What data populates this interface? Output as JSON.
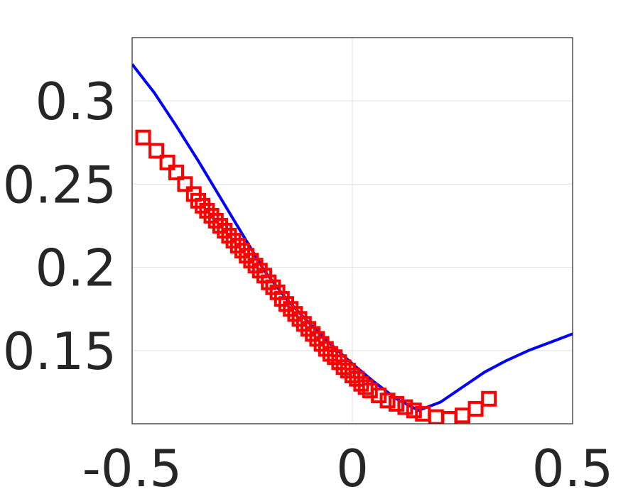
{
  "chart_data": {
    "type": "scatter",
    "title": "",
    "xlabel": "",
    "ylabel": "",
    "xlim": [
      -0.5,
      0.5
    ],
    "ylim": [
      0.106,
      0.338
    ],
    "xticks": [
      -0.5,
      0,
      0.5
    ],
    "xtick_labels": [
      "-0.5",
      "0",
      "0.5"
    ],
    "yticks": [
      0.15,
      0.2,
      0.25,
      0.3
    ],
    "ytick_labels": [
      "0.15",
      "0.2",
      "0.25",
      "0.3"
    ],
    "grid": true,
    "legend": "none",
    "series": [
      {
        "kind": "line",
        "color": "#0000ff",
        "x": [
          -0.5,
          -0.45,
          -0.4,
          -0.35,
          -0.3,
          -0.25,
          -0.2,
          -0.15,
          -0.1,
          -0.05,
          0.0,
          0.05,
          0.1,
          0.15,
          0.2,
          0.25,
          0.3,
          0.35,
          0.4,
          0.45,
          0.5
        ],
        "y": [
          0.322,
          0.305,
          0.285,
          0.264,
          0.242,
          0.22,
          0.198,
          0.181,
          0.167,
          0.154,
          0.142,
          0.131,
          0.121,
          0.114,
          0.119,
          0.128,
          0.137,
          0.144,
          0.15,
          0.155,
          0.16
        ]
      },
      {
        "kind": "markers",
        "marker": "square",
        "color": "#ff0000",
        "x": [
          -0.475,
          -0.445,
          -0.42,
          -0.4,
          -0.38,
          -0.36,
          -0.35,
          -0.34,
          -0.33,
          -0.32,
          -0.31,
          -0.3,
          -0.29,
          -0.28,
          -0.27,
          -0.26,
          -0.25,
          -0.24,
          -0.23,
          -0.22,
          -0.21,
          -0.2,
          -0.19,
          -0.18,
          -0.17,
          -0.16,
          -0.15,
          -0.14,
          -0.13,
          -0.12,
          -0.11,
          -0.1,
          -0.09,
          -0.08,
          -0.07,
          -0.06,
          -0.05,
          -0.04,
          -0.03,
          -0.02,
          -0.01,
          0.0,
          0.01,
          0.02,
          0.03,
          0.04,
          0.06,
          0.08,
          0.1,
          0.12,
          0.14,
          0.16,
          0.19,
          0.22,
          0.25,
          0.28,
          0.31
        ],
        "y": [
          0.278,
          0.27,
          0.263,
          0.257,
          0.25,
          0.244,
          0.24,
          0.237,
          0.234,
          0.231,
          0.228,
          0.225,
          0.222,
          0.219,
          0.216,
          0.213,
          0.21,
          0.207,
          0.204,
          0.201,
          0.198,
          0.195,
          0.191,
          0.188,
          0.185,
          0.181,
          0.178,
          0.175,
          0.172,
          0.169,
          0.166,
          0.163,
          0.16,
          0.157,
          0.154,
          0.151,
          0.148,
          0.146,
          0.143,
          0.14,
          0.138,
          0.135,
          0.133,
          0.13,
          0.128,
          0.126,
          0.123,
          0.12,
          0.118,
          0.116,
          0.114,
          0.112,
          0.11,
          0.109,
          0.111,
          0.115,
          0.121
        ]
      }
    ]
  }
}
